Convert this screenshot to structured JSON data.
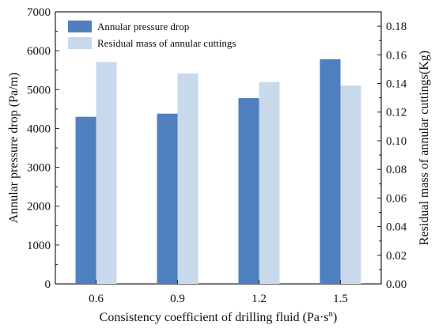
{
  "chart_data": {
    "type": "bar",
    "categories": [
      "0.6",
      "0.9",
      "1.2",
      "1.5"
    ],
    "xlabel": "Consistency coefficient of drilling fluid (Pa·s",
    "xlabel_superscript": "n",
    "xlabel_suffix": ")",
    "series": [
      {
        "name": "Annular pressure drop",
        "axis": "left",
        "color": "#4f7fbf",
        "values": [
          4300,
          4380,
          4780,
          5780
        ]
      },
      {
        "name": "Residual mass of annular cuttings",
        "axis": "right",
        "color": "#c8d9ec",
        "values": [
          0.155,
          0.147,
          0.141,
          0.1385
        ]
      }
    ],
    "left_axis": {
      "label": "Annular pressure drop (Pa/m)",
      "ylim": [
        0,
        7000
      ],
      "ticks": [
        "0",
        "1000",
        "2000",
        "3000",
        "4000",
        "5000",
        "6000",
        "7000"
      ]
    },
    "right_axis": {
      "label": "Residual mass of annular cuttings(Kg)",
      "ylim": [
        0,
        0.19
      ],
      "ticks": [
        "0.00",
        "0.02",
        "0.04",
        "0.06",
        "0.08",
        "0.10",
        "0.12",
        "0.14",
        "0.16",
        "0.18"
      ]
    },
    "legend": {
      "placement": "top-left",
      "items": [
        "Annular pressure drop",
        "Residual mass of annular cuttings"
      ]
    },
    "grid": false
  }
}
